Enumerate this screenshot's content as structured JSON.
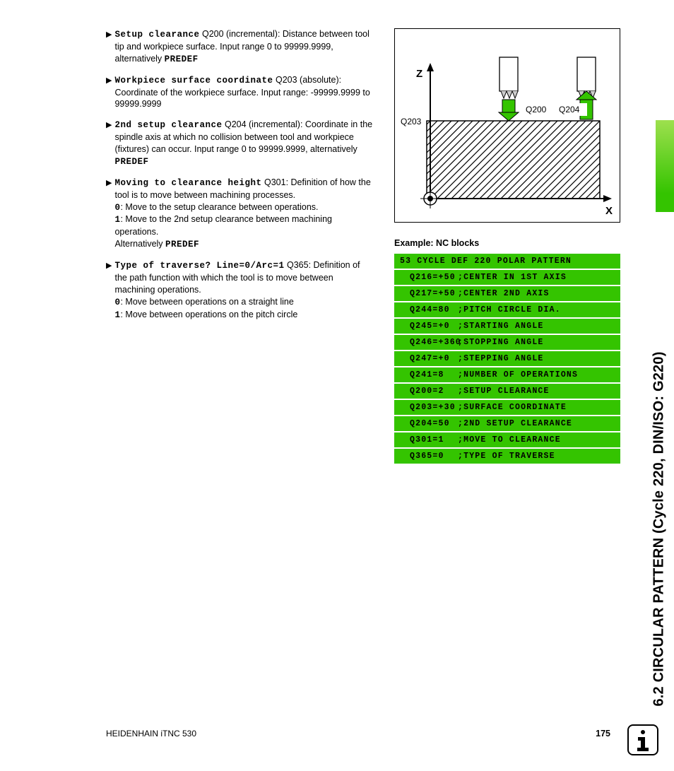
{
  "sidebar_title": "6.2 CIRCULAR PATTERN (Cycle 220, DIN/ISO: G220)",
  "bullets": [
    {
      "bold": "Setup clearance",
      "rest": " Q200 (incremental): Distance between tool tip and workpiece surface. Input range 0 to 99999.9999, alternatively ",
      "tail": "PREDEF"
    },
    {
      "bold": "Workpiece surface coordinate",
      "rest": " Q203 (absolute): Coordinate of the workpiece surface. Input range: -99999.9999 to 99999.9999",
      "tail": ""
    },
    {
      "bold": "2nd setup clearance",
      "rest": " Q204 (incremental): Coordinate in the spindle axis at which no collision between tool and workpiece (fixtures) can occur. Input range 0 to 99999.9999, alternatively ",
      "tail": "PREDEF"
    },
    {
      "bold": "Moving to clearance height",
      "rest": " Q301: Definition of how the tool is to move between machining processes.",
      "lines": [
        "0: Move to the setup clearance between operations.",
        "1: Move to the 2nd setup clearance between machining operations.",
        "Alternatively PREDEF"
      ]
    },
    {
      "bold": "Type of traverse? Line=0/Arc=1",
      "rest": " Q365: Definition of the path function with which the tool is to move between machining operations.",
      "lines": [
        "0: Move between operations on a straight line",
        "1: Move between operations on the pitch circle"
      ]
    }
  ],
  "diagram": {
    "axis_z": "Z",
    "axis_x": "X",
    "label_q203": "Q203",
    "label_q200": "Q200",
    "label_q204": "Q204",
    "colors": {
      "hatch": "#888888",
      "arrow_green": "#34c400",
      "border": "#000000"
    }
  },
  "example_label": "Example: NC blocks",
  "nc_blocks": [
    {
      "a": "53 CYCLE DEF 220 POLAR PATTERN",
      "first": true
    },
    {
      "a": "Q216=+50",
      "b": ";CENTER IN 1ST AXIS"
    },
    {
      "a": "Q217=+50",
      "b": ";CENTER 2ND AXIS"
    },
    {
      "a": "Q244=80",
      "b": ";PITCH CIRCLE DIA."
    },
    {
      "a": "Q245=+0",
      "b": ";STARTING ANGLE"
    },
    {
      "a": "Q246=+360",
      "b": ";STOPPING ANGLE"
    },
    {
      "a": "Q247=+0",
      "b": ";STEPPING ANGLE"
    },
    {
      "a": "Q241=8",
      "b": ";NUMBER OF OPERATIONS"
    },
    {
      "a": "Q200=2",
      "b": ";SETUP CLEARANCE"
    },
    {
      "a": "Q203=+30",
      "b": ";SURFACE COORDINATE"
    },
    {
      "a": "Q204=50",
      "b": ";2ND SETUP CLEARANCE"
    },
    {
      "a": "Q301=1",
      "b": ";MOVE TO CLEARANCE"
    },
    {
      "a": "Q365=0",
      "b": ";TYPE OF TRAVERSE"
    }
  ],
  "footer_left": "HEIDENHAIN iTNC 530",
  "footer_page": "175"
}
